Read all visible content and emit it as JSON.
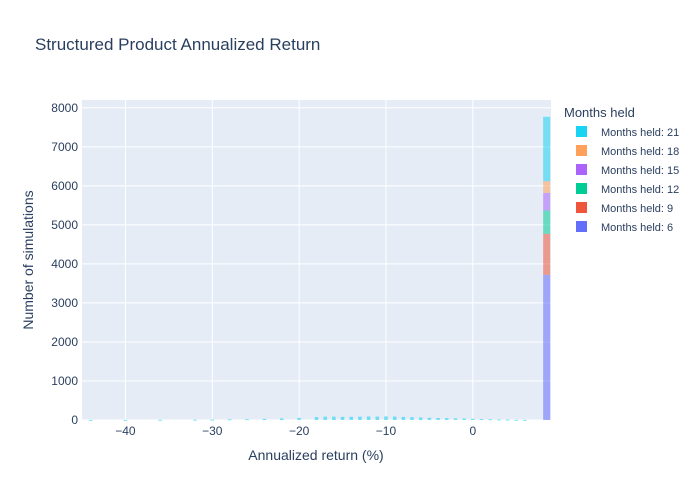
{
  "chart_data": {
    "type": "bar",
    "title": "Structured Product Annualized Return",
    "xlabel": "Annualized return (%)",
    "ylabel": "Number of simulations",
    "xlim": [
      -45,
      9
    ],
    "ylim": [
      0,
      8200
    ],
    "x_ticks": [
      -40,
      -30,
      -20,
      -10,
      0
    ],
    "y_ticks": [
      0,
      1000,
      2000,
      3000,
      4000,
      5000,
      6000,
      7000,
      8000
    ],
    "grid": true,
    "barmode": "stacked histogram",
    "legend_title": "Months held",
    "legend_position": "right",
    "series": [
      {
        "name": "Months held: 21",
        "color": "#19d3f3",
        "values": [
          {
            "x": 8.5,
            "y": 1650
          }
        ]
      },
      {
        "name": "Months held: 18",
        "color": "#ffa15a",
        "values": [
          {
            "x": 8.5,
            "y": 300
          }
        ]
      },
      {
        "name": "Months held: 15",
        "color": "#ab63fa",
        "values": [
          {
            "x": 8.5,
            "y": 450
          }
        ]
      },
      {
        "name": "Months held: 12",
        "color": "#00cc96",
        "values": [
          {
            "x": 8.5,
            "y": 600
          }
        ]
      },
      {
        "name": "Months held: 9",
        "color": "#ef553b",
        "values": [
          {
            "x": 8.5,
            "y": 1050
          }
        ]
      },
      {
        "name": "Months held: 6",
        "color": "#636efa",
        "values": [
          {
            "x": 8.5,
            "y": 3720
          }
        ]
      }
    ],
    "tail_series": {
      "name": "Months held: 21",
      "color": "#19d3f3",
      "x": [
        -44,
        -40,
        -36,
        -32,
        -30,
        -28,
        -26,
        -24,
        -22,
        -20,
        -18,
        -17,
        -16,
        -15,
        -14,
        -13,
        -12,
        -11,
        -10,
        -9,
        -8,
        -7,
        -6,
        -5,
        -4,
        -3,
        -2,
        -1,
        0,
        1,
        2,
        3,
        4,
        5,
        6
      ],
      "y": [
        3,
        3,
        5,
        8,
        12,
        18,
        22,
        30,
        40,
        55,
        75,
        85,
        85,
        80,
        82,
        86,
        90,
        88,
        92,
        88,
        80,
        72,
        65,
        58,
        52,
        48,
        42,
        38,
        32,
        25,
        20,
        15,
        10,
        6,
        3
      ]
    }
  }
}
